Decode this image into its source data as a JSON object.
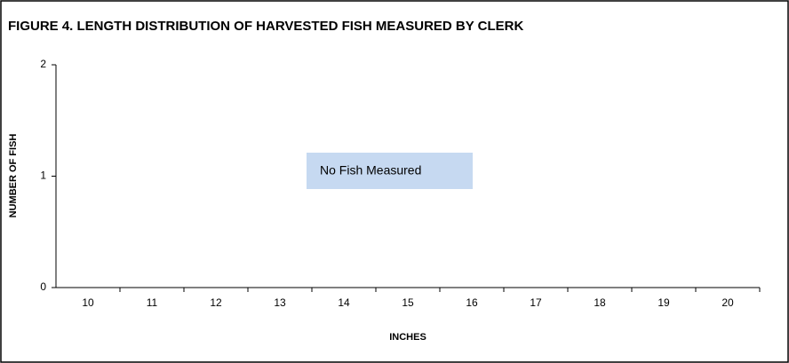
{
  "chart_data": {
    "type": "bar",
    "title": "FIGURE 4.  LENGTH DISTRIBUTION OF HARVESTED FISH MEASURED BY CLERK",
    "xlabel": "INCHES",
    "ylabel": "NUMBER OF FISH",
    "annotation": "No Fish Measured",
    "categories": [
      "10",
      "11",
      "12",
      "13",
      "14",
      "15",
      "16",
      "17",
      "18",
      "19",
      "20"
    ],
    "values": [
      0,
      0,
      0,
      0,
      0,
      0,
      0,
      0,
      0,
      0,
      0
    ],
    "color": "#4f81bd",
    "ylim": [
      0,
      2
    ],
    "yticks": [
      0,
      1,
      2
    ],
    "grid": false
  }
}
